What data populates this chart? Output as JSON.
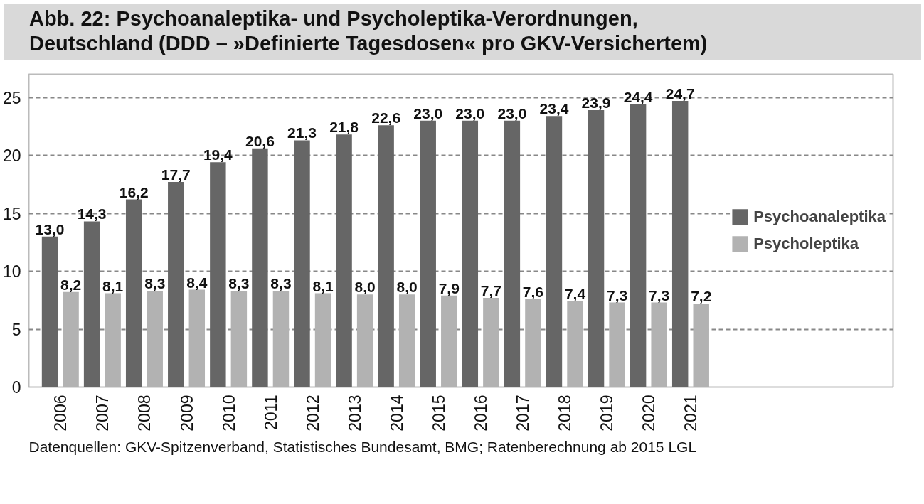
{
  "chart_data": {
    "type": "bar",
    "title": "Abb. 22: Psychoanaleptika- und Psycholeptika-Verordnungen, Deutschland (DDD – »Definierte Tagesdosen« pro GKV-Versichertem)",
    "annotations": [
      "Datenquellen: GKV-Spitzenverband, Statistisches Bundesamt, BMG; Ratenberechnung ab 2015 LGL"
    ],
    "categories": [
      "2006",
      "2007",
      "2008",
      "2009",
      "2010",
      "2011",
      "2012",
      "2013",
      "2014",
      "2015",
      "2016",
      "2017",
      "2018",
      "2019",
      "2020",
      "2021"
    ],
    "series": [
      {
        "name": "Psychoanaleptika",
        "color": "#666666",
        "values": [
          13.0,
          14.3,
          16.2,
          17.7,
          19.4,
          20.6,
          21.3,
          21.8,
          22.6,
          23.0,
          23.0,
          23.0,
          23.4,
          23.9,
          24.4,
          24.7
        ],
        "value_labels": [
          "13,0",
          "14,3",
          "16,2",
          "17,7",
          "19,4",
          "20,6",
          "21,3",
          "21,8",
          "22,6",
          "23,0",
          "23,0",
          "23,0",
          "23,4",
          "23,9",
          "24,4",
          "24,7"
        ]
      },
      {
        "name": "Psycholeptika",
        "color": "#b2b2b2",
        "values": [
          8.2,
          8.1,
          8.3,
          8.4,
          8.3,
          8.3,
          8.1,
          8.0,
          8.0,
          7.9,
          7.7,
          7.6,
          7.4,
          7.3,
          7.3,
          7.2
        ],
        "value_labels": [
          "8,2",
          "8,1",
          "8,3",
          "8,4",
          "8,3",
          "8,3",
          "8,1",
          "8,0",
          "8,0",
          "7,9",
          "7,7",
          "7,6",
          "7,4",
          "7,3",
          "7,3",
          "7,2"
        ]
      }
    ],
    "ylim": [
      0,
      27
    ],
    "yticks": [
      0,
      5,
      10,
      15,
      20,
      25
    ],
    "grid": "y",
    "legend": "right"
  }
}
